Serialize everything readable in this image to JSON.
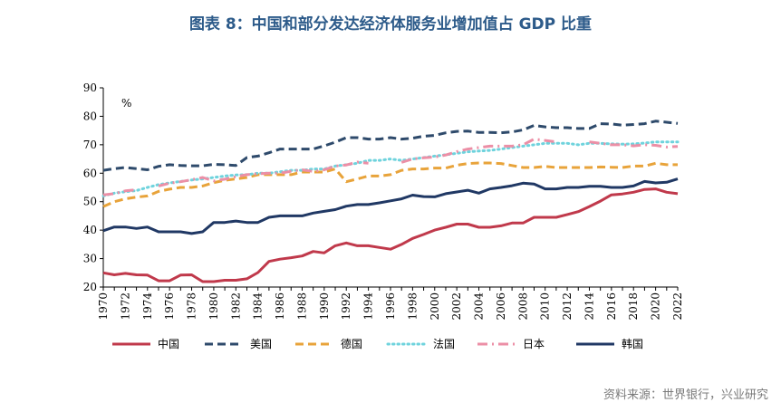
{
  "title": "图表 8：中国和部分发达经济体服务业增加值占 GDP 比重",
  "source": "资料来源：世界银行，兴业研究",
  "chart_data": {
    "type": "line",
    "unit": "%",
    "ylim": [
      20,
      90
    ],
    "yticks": [
      20,
      30,
      40,
      50,
      60,
      70,
      80,
      90
    ],
    "x": [
      1970,
      1971,
      1972,
      1973,
      1974,
      1975,
      1976,
      1977,
      1978,
      1979,
      1980,
      1981,
      1982,
      1983,
      1984,
      1985,
      1986,
      1987,
      1988,
      1989,
      1990,
      1991,
      1992,
      1993,
      1994,
      1995,
      1996,
      1997,
      1998,
      1999,
      2000,
      2001,
      2002,
      2003,
      2004,
      2005,
      2006,
      2007,
      2008,
      2009,
      2010,
      2011,
      2012,
      2013,
      2014,
      2015,
      2016,
      2017,
      2018,
      2019,
      2020,
      2021,
      2022
    ],
    "xticks": [
      1970,
      1972,
      1974,
      1976,
      1978,
      1980,
      1982,
      1984,
      1986,
      1988,
      1990,
      1992,
      1994,
      1996,
      1998,
      2000,
      2002,
      2004,
      2006,
      2008,
      2010,
      2012,
      2014,
      2016,
      2018,
      2020,
      2022
    ],
    "legend_position": "bottom",
    "series": [
      {
        "name": "中国",
        "color": "#c0394b",
        "dash": "solid",
        "values": [
          25,
          24.3,
          24.8,
          24.3,
          24.2,
          22.2,
          22.2,
          24.2,
          24.3,
          21.9,
          21.9,
          22.4,
          22.4,
          22.9,
          25.1,
          29,
          29.8,
          30.3,
          30.9,
          32.5,
          32,
          34.5,
          35.5,
          34.5,
          34.5,
          33.9,
          33.3,
          35,
          37.1,
          38.5,
          40,
          41,
          42.1,
          42.1,
          41,
          41,
          41.5,
          42.5,
          42.5,
          44.5,
          44.5,
          44.5,
          45.5,
          46.5,
          48.3,
          50.2,
          52.4,
          52.7,
          53.3,
          54.3,
          54.5,
          53.3,
          52.8
        ]
      },
      {
        "name": "美国",
        "color": "#2e4a6b",
        "dash": "dashed",
        "values": [
          61,
          61.6,
          62,
          61.6,
          61.2,
          62.4,
          63,
          62.7,
          62.6,
          62.6,
          63.1,
          63,
          62.7,
          65.5,
          66,
          67.2,
          68.5,
          68.5,
          68.5,
          68.5,
          69.6,
          70.9,
          72.5,
          72.5,
          72,
          72,
          72.5,
          72,
          72.3,
          73,
          73.3,
          74.2,
          74.7,
          74.8,
          74.3,
          74.3,
          74.2,
          74.5,
          75.2,
          76.8,
          76.3,
          76,
          76,
          75.7,
          75.7,
          77.4,
          77.3,
          76.9,
          77.1,
          77.4,
          78.3,
          77.9,
          77.5
        ]
      },
      {
        "name": "德国",
        "color": "#e8a33a",
        "dash": "dashed",
        "values": [
          48.3,
          50,
          51,
          51.6,
          52,
          53.6,
          54.4,
          55,
          55,
          55.5,
          56.7,
          57.5,
          58,
          58.5,
          59.5,
          59.5,
          59.5,
          59.5,
          60.4,
          60.4,
          60.4,
          61.5,
          57,
          58,
          59,
          59,
          59.5,
          61,
          61.5,
          61.5,
          61.8,
          61.8,
          62.8,
          63.4,
          63.6,
          63.6,
          63.4,
          62.7,
          62,
          62,
          62.4,
          62,
          62,
          62,
          62,
          62.2,
          62.1,
          62,
          62.5,
          62.5,
          63.5,
          63,
          63
        ]
      },
      {
        "name": "法国",
        "color": "#6fd3dd",
        "dash": "dotted",
        "values": [
          52,
          53,
          53.5,
          53.9,
          55,
          56,
          56.6,
          57.1,
          57.6,
          58,
          58.5,
          59,
          59.4,
          59.5,
          60,
          60,
          60.5,
          61,
          61,
          61.5,
          61.5,
          62.5,
          63,
          63.5,
          64.5,
          64.5,
          65,
          64.5,
          65,
          65.5,
          66,
          66.5,
          67,
          67.5,
          67.8,
          68,
          68.5,
          69,
          69.5,
          70,
          70.5,
          70.5,
          70.5,
          70,
          70.5,
          70.5,
          70.3,
          70.2,
          70.3,
          70.6,
          71,
          71,
          71
        ]
      },
      {
        "name": "日本",
        "color": "#ec8fa6",
        "dash": "dashdot",
        "values": [
          52.4,
          52.8,
          53.8,
          54.2,
          null,
          55.5,
          56.5,
          57,
          57.7,
          58.5,
          57.3,
          57.9,
          58.8,
          59.5,
          59.8,
          60,
          60,
          60.7,
          61.2,
          60.6,
          61.2,
          62.5,
          62.9,
          63.9,
          63.5,
          null,
          null,
          63.8,
          65,
          65.4,
          65.7,
          66.4,
          67.6,
          68.5,
          69,
          69.5,
          69.5,
          69.5,
          70,
          72,
          71.5,
          71,
          null,
          null,
          71,
          70.5,
          70,
          70,
          69.6,
          70,
          69.8,
          69.2,
          69.4
        ]
      },
      {
        "name": "韩国",
        "color": "#203864",
        "dash": "solid",
        "values": [
          39.8,
          41.1,
          41.1,
          40.6,
          41.1,
          39.4,
          39.4,
          39.4,
          38.8,
          39.4,
          42.7,
          42.7,
          43.2,
          42.7,
          42.7,
          44.5,
          45,
          45,
          45,
          46,
          46.6,
          47.2,
          48.4,
          49,
          49,
          49.6,
          50.3,
          51,
          52.3,
          51.8,
          51.7,
          52.8,
          53.4,
          54,
          53,
          54.5,
          55,
          55.6,
          56.5,
          56.2,
          54.5,
          54.5,
          55,
          55,
          55.4,
          55.4,
          55,
          55,
          55.5,
          57.1,
          56.6,
          56.8,
          58
        ]
      }
    ]
  }
}
